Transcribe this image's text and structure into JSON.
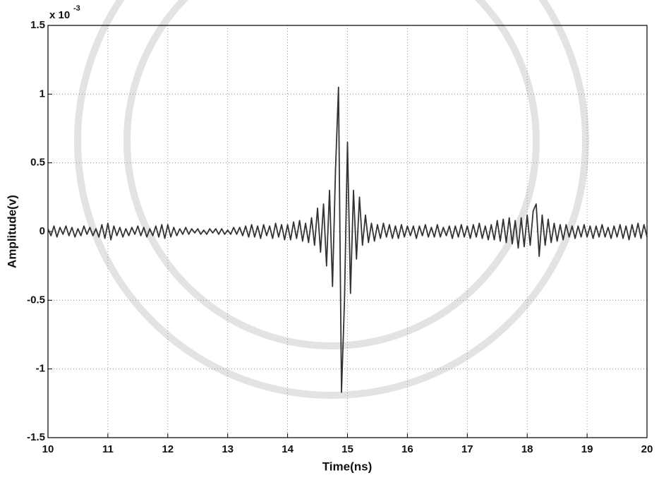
{
  "chart_data": {
    "type": "line",
    "xlabel": "Time(ns)",
    "ylabel": "Amplitude(v)",
    "y_multiplier": "x 10",
    "y_multiplier_exponent": "-3",
    "x": [
      10,
      10.05,
      10.1,
      10.15,
      10.2,
      10.25,
      10.3,
      10.35,
      10.4,
      10.45,
      10.5,
      10.55,
      10.6,
      10.65,
      10.7,
      10.75,
      10.8,
      10.85,
      10.9,
      10.95,
      11,
      11.05,
      11.1,
      11.15,
      11.2,
      11.25,
      11.3,
      11.35,
      11.4,
      11.45,
      11.5,
      11.55,
      11.6,
      11.65,
      11.7,
      11.75,
      11.8,
      11.85,
      11.9,
      11.95,
      12,
      12.05,
      12.1,
      12.15,
      12.2,
      12.25,
      12.3,
      12.35,
      12.4,
      12.45,
      12.5,
      12.55,
      12.6,
      12.65,
      12.7,
      12.75,
      12.8,
      12.85,
      12.9,
      12.95,
      13,
      13.05,
      13.1,
      13.15,
      13.2,
      13.25,
      13.3,
      13.35,
      13.4,
      13.45,
      13.5,
      13.55,
      13.6,
      13.65,
      13.7,
      13.75,
      13.8,
      13.85,
      13.9,
      13.95,
      14,
      14.05,
      14.1,
      14.15,
      14.2,
      14.25,
      14.3,
      14.35,
      14.4,
      14.45,
      14.5,
      14.55,
      14.6,
      14.65,
      14.7,
      14.75,
      14.8,
      14.85,
      14.9,
      14.95,
      15,
      15.05,
      15.1,
      15.15,
      15.2,
      15.25,
      15.3,
      15.35,
      15.4,
      15.45,
      15.5,
      15.55,
      15.6,
      15.65,
      15.7,
      15.75,
      15.8,
      15.85,
      15.9,
      15.95,
      16,
      16.05,
      16.1,
      16.15,
      16.2,
      16.25,
      16.3,
      16.35,
      16.4,
      16.45,
      16.5,
      16.55,
      16.6,
      16.65,
      16.7,
      16.75,
      16.8,
      16.85,
      16.9,
      16.95,
      17,
      17.05,
      17.1,
      17.15,
      17.2,
      17.25,
      17.3,
      17.35,
      17.4,
      17.45,
      17.5,
      17.55,
      17.6,
      17.65,
      17.7,
      17.75,
      17.8,
      17.85,
      17.9,
      17.95,
      18,
      18.05,
      18.1,
      18.15,
      18.2,
      18.25,
      18.3,
      18.35,
      18.4,
      18.45,
      18.5,
      18.55,
      18.6,
      18.65,
      18.7,
      18.75,
      18.8,
      18.85,
      18.9,
      18.95,
      19,
      19.05,
      19.1,
      19.15,
      19.2,
      19.25,
      19.3,
      19.35,
      19.4,
      19.45,
      19.5,
      19.55,
      19.6,
      19.65,
      19.7,
      19.75,
      19.8,
      19.85,
      19.9,
      19.95,
      20
    ],
    "series": [
      {
        "color": "#333333",
        "values": [
          0.02,
          -0.03,
          0.04,
          -0.04,
          0.03,
          -0.02,
          0.04,
          -0.03,
          0.03,
          -0.04,
          0.02,
          -0.03,
          0.04,
          -0.02,
          0.03,
          -0.03,
          0.02,
          -0.04,
          0.05,
          -0.05,
          0.06,
          -0.06,
          0.04,
          -0.03,
          0.03,
          -0.04,
          0.02,
          -0.03,
          0.03,
          -0.02,
          0.04,
          -0.03,
          0.03,
          -0.04,
          0.02,
          -0.03,
          0.04,
          -0.04,
          0.05,
          -0.05,
          0.05,
          -0.04,
          0.03,
          -0.03,
          0.02,
          -0.02,
          0.03,
          -0.02,
          0.02,
          -0.01,
          0.02,
          -0.02,
          0.01,
          -0.02,
          0.02,
          -0.01,
          0.02,
          -0.02,
          0.02,
          -0.02,
          0.01,
          -0.02,
          0.03,
          -0.02,
          0.03,
          -0.03,
          0.04,
          -0.04,
          0.05,
          -0.04,
          0.04,
          -0.05,
          0.05,
          -0.03,
          0.04,
          -0.05,
          0.06,
          -0.04,
          0.05,
          -0.06,
          0.05,
          -0.06,
          0.07,
          -0.05,
          0.08,
          -0.07,
          0.06,
          -0.08,
          0.1,
          -0.1,
          0.17,
          -0.15,
          0.2,
          -0.25,
          0.3,
          -0.4,
          0.45,
          1.05,
          -1.17,
          -0.5,
          0.65,
          -0.45,
          0.3,
          -0.2,
          0.25,
          -0.1,
          0.12,
          -0.08,
          0.06,
          -0.07,
          0.05,
          -0.05,
          0.06,
          -0.04,
          0.05,
          -0.05,
          0.04,
          -0.05,
          0.05,
          -0.04,
          0.04,
          -0.03,
          0.04,
          -0.05,
          0.04,
          -0.03,
          0.05,
          -0.04,
          0.03,
          -0.04,
          0.05,
          -0.04,
          0.03,
          -0.03,
          0.04,
          -0.05,
          0.04,
          -0.04,
          0.05,
          -0.04,
          0.04,
          -0.05,
          0.05,
          -0.04,
          0.06,
          -0.05,
          0.04,
          -0.06,
          0.05,
          -0.06,
          0.08,
          -0.07,
          0.09,
          -0.08,
          0.1,
          -0.09,
          0.08,
          -0.12,
          0.1,
          -0.11,
          0.12,
          -0.1,
          0.15,
          0.2,
          -0.18,
          0.12,
          -0.1,
          0.09,
          -0.08,
          0.06,
          -0.07,
          0.05,
          -0.06,
          0.05,
          -0.04,
          0.04,
          -0.05,
          0.04,
          -0.04,
          0.05,
          -0.04,
          0.04,
          -0.05,
          0.04,
          -0.04,
          0.05,
          -0.04,
          0.03,
          -0.05,
          0.04,
          -0.04,
          0.05,
          -0.05,
          0.04,
          -0.06,
          0.05,
          -0.04,
          0.06,
          -0.05,
          0.05,
          -0.04
        ]
      }
    ],
    "xlim": [
      10,
      20
    ],
    "xticks": [
      10,
      11,
      12,
      13,
      14,
      15,
      16,
      17,
      18,
      19,
      20
    ],
    "ylim": [
      -1.5,
      1.5
    ],
    "yticks": [
      -1.5,
      -1,
      -0.5,
      0,
      0.5,
      1,
      1.5
    ],
    "grid": true
  }
}
